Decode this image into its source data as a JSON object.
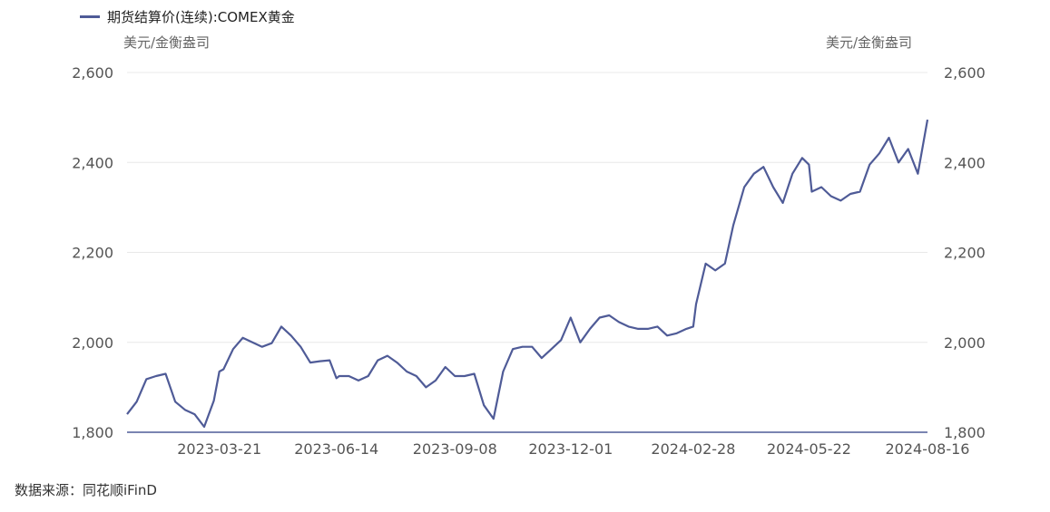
{
  "legend": {
    "label": "期货结算价(连续):COMEX黄金"
  },
  "unit_left": "美元/金衡盎司",
  "unit_right": "美元/金衡盎司",
  "source": "数据来源：同花顺iFinD",
  "colors": {
    "line": "#4f5b97",
    "grid": "#e8e8e8",
    "axis": "#4f5b97"
  },
  "chart_data": {
    "type": "line",
    "series": [
      {
        "name": "期货结算价(连续):COMEX黄金",
        "x": [
          "2023-01-13",
          "2023-01-20",
          "2023-01-27",
          "2023-02-03",
          "2023-02-10",
          "2023-02-17",
          "2023-02-24",
          "2023-03-03",
          "2023-03-10",
          "2023-03-17",
          "2023-03-21",
          "2023-03-24",
          "2023-03-31",
          "2023-04-07",
          "2023-04-14",
          "2023-04-21",
          "2023-04-28",
          "2023-05-05",
          "2023-05-12",
          "2023-05-19",
          "2023-05-26",
          "2023-06-02",
          "2023-06-09",
          "2023-06-14",
          "2023-06-16",
          "2023-06-23",
          "2023-06-30",
          "2023-07-07",
          "2023-07-14",
          "2023-07-21",
          "2023-07-28",
          "2023-08-04",
          "2023-08-11",
          "2023-08-18",
          "2023-08-25",
          "2023-09-01",
          "2023-09-08",
          "2023-09-15",
          "2023-09-22",
          "2023-09-29",
          "2023-10-06",
          "2023-10-13",
          "2023-10-20",
          "2023-10-27",
          "2023-11-03",
          "2023-11-10",
          "2023-11-17",
          "2023-11-24",
          "2023-12-01",
          "2023-12-08",
          "2023-12-15",
          "2023-12-22",
          "2023-12-29",
          "2024-01-05",
          "2024-01-12",
          "2024-01-19",
          "2024-01-26",
          "2024-02-02",
          "2024-02-09",
          "2024-02-16",
          "2024-02-23",
          "2024-02-28",
          "2024-03-01",
          "2024-03-08",
          "2024-03-15",
          "2024-03-22",
          "2024-03-28",
          "2024-04-05",
          "2024-04-12",
          "2024-04-19",
          "2024-04-26",
          "2024-05-03",
          "2024-05-10",
          "2024-05-17",
          "2024-05-22",
          "2024-05-24",
          "2024-05-31",
          "2024-06-07",
          "2024-06-14",
          "2024-06-21",
          "2024-06-28",
          "2024-07-05",
          "2024-07-12",
          "2024-07-19",
          "2024-07-26",
          "2024-08-02",
          "2024-08-09",
          "2024-08-16"
        ],
        "values": [
          1840,
          1868,
          1918,
          1925,
          1930,
          1868,
          1850,
          1840,
          1812,
          1870,
          1935,
          1940,
          1985,
          2010,
          2000,
          1990,
          1998,
          2035,
          2015,
          1990,
          1955,
          1958,
          1960,
          1920,
          1925,
          1925,
          1915,
          1925,
          1960,
          1970,
          1955,
          1935,
          1925,
          1900,
          1915,
          1945,
          1925,
          1925,
          1930,
          1860,
          1830,
          1935,
          1985,
          1990,
          1990,
          1965,
          1985,
          2005,
          2055,
          2000,
          2030,
          2055,
          2060,
          2045,
          2035,
          2030,
          2030,
          2035,
          2015,
          2020,
          2030,
          2035,
          2085,
          2175,
          2160,
          2175,
          2260,
          2345,
          2375,
          2390,
          2345,
          2310,
          2375,
          2410,
          2395,
          2335,
          2345,
          2325,
          2315,
          2330,
          2335,
          2395,
          2420,
          2455,
          2400,
          2430,
          2375,
          2495
        ]
      }
    ],
    "ylim": [
      1800,
      2600
    ],
    "yticks": [
      "1,800",
      "2,000",
      "2,200",
      "2,400",
      "2,600"
    ],
    "xticks": [
      "2023-03-21",
      "2023-06-14",
      "2023-09-08",
      "2023-12-01",
      "2024-02-28",
      "2024-05-22",
      "2024-08-16"
    ],
    "grid": true,
    "legend_position": "top-left"
  }
}
